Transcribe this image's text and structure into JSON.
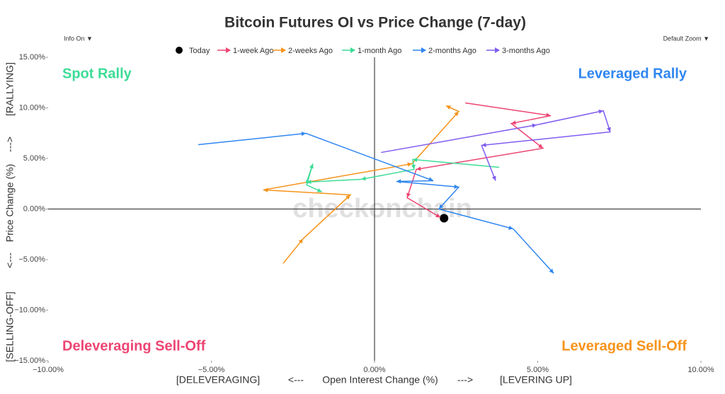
{
  "chart_data": {
    "type": "line",
    "title": "Bitcoin Futures OI vs Price Change (7-day)",
    "controls": [
      "Info On ▼",
      "Default Zoom ▼"
    ],
    "watermark": "checkonchain",
    "x_label": [
      "[DELEVERAGING]",
      "<---",
      "Open Interest Change (%)",
      "--->",
      "[LEVERING UP]"
    ],
    "y_label": [
      "[SELLING-OFF]",
      "<---",
      "Price Change (%)",
      "--->",
      "[RALLYING]"
    ],
    "quadrants": [
      {
        "text": "Spot Rally",
        "color": "#3ddc97",
        "corner": "top-left"
      },
      {
        "text": "Leveraged Rally",
        "color": "#2f86f0",
        "corner": "top-right"
      },
      {
        "text": "Deleveraging Sell-Off",
        "color": "#ee4472",
        "corner": "bottom-left"
      },
      {
        "text": "Leveraged Sell-Off",
        "color": "#f7931a",
        "corner": "bottom-right"
      }
    ],
    "xlim": [
      -10,
      10
    ],
    "ylim": [
      -15,
      15
    ],
    "xticks": [
      {
        "value": -10,
        "label": "−10.00%"
      },
      {
        "value": -5,
        "label": "−5.00%"
      },
      {
        "value": 0,
        "label": "0.00%"
      },
      {
        "value": 5,
        "label": "5.00%"
      },
      {
        "value": 10,
        "label": "10.00%"
      }
    ],
    "yticks": [
      {
        "value": -15,
        "label": "−15.00%"
      },
      {
        "value": -10,
        "label": "−10.00%"
      },
      {
        "value": -5,
        "label": "−5.00%"
      },
      {
        "value": 0,
        "label": "0.00%"
      },
      {
        "value": 5,
        "label": "5.00%"
      },
      {
        "value": 10,
        "label": "10.00%"
      },
      {
        "value": 15,
        "label": "15.00%"
      }
    ],
    "series": [
      {
        "name": "Today",
        "color": "#000000",
        "marker": "dot",
        "x": [
          2.13
        ],
        "values": [
          -0.91
        ]
      },
      {
        "name": "1-week Ago",
        "color": "#ee4472",
        "marker": "arrow",
        "x": [
          2.78,
          5.4,
          4.19,
          5.16,
          1.28,
          1.0,
          2.02
        ],
        "values": [
          10.49,
          9.23,
          8.46,
          6.01,
          3.92,
          1.12,
          -0.84
        ]
      },
      {
        "name": "2-weeks Ago",
        "color": "#f7931a",
        "marker": "arrow",
        "x": [
          -2.8,
          -2.19,
          -0.74,
          -3.41,
          1.15,
          2.58,
          2.19
        ],
        "values": [
          -5.38,
          -2.94,
          1.4,
          1.89,
          4.48,
          9.65,
          10.21
        ]
      },
      {
        "name": "1-month Ago",
        "color": "#3ddc97",
        "marker": "arrow",
        "x": [
          3.82,
          1.17,
          1.21,
          -0.41,
          -2.08,
          -1.89,
          -2.08,
          -1.61
        ],
        "values": [
          4.13,
          4.9,
          3.92,
          2.94,
          2.66,
          4.48,
          2.38,
          1.68
        ]
      },
      {
        "name": "2-months Ago",
        "color": "#2f86f0",
        "marker": "arrow",
        "x": [
          -5.4,
          -2.1,
          1.8,
          0.67,
          2.58,
          1.97,
          4.25,
          5.49
        ],
        "values": [
          6.36,
          7.48,
          2.8,
          2.73,
          2.17,
          0.0,
          -1.96,
          -6.36
        ]
      },
      {
        "name": "3-months Ago",
        "color": "#7e5cf0",
        "marker": "arrow",
        "x": [
          0.2,
          4.97,
          7.01,
          7.22,
          3.28,
          3.71
        ],
        "values": [
          5.59,
          8.32,
          9.72,
          7.62,
          6.29,
          2.8
        ]
      }
    ]
  }
}
